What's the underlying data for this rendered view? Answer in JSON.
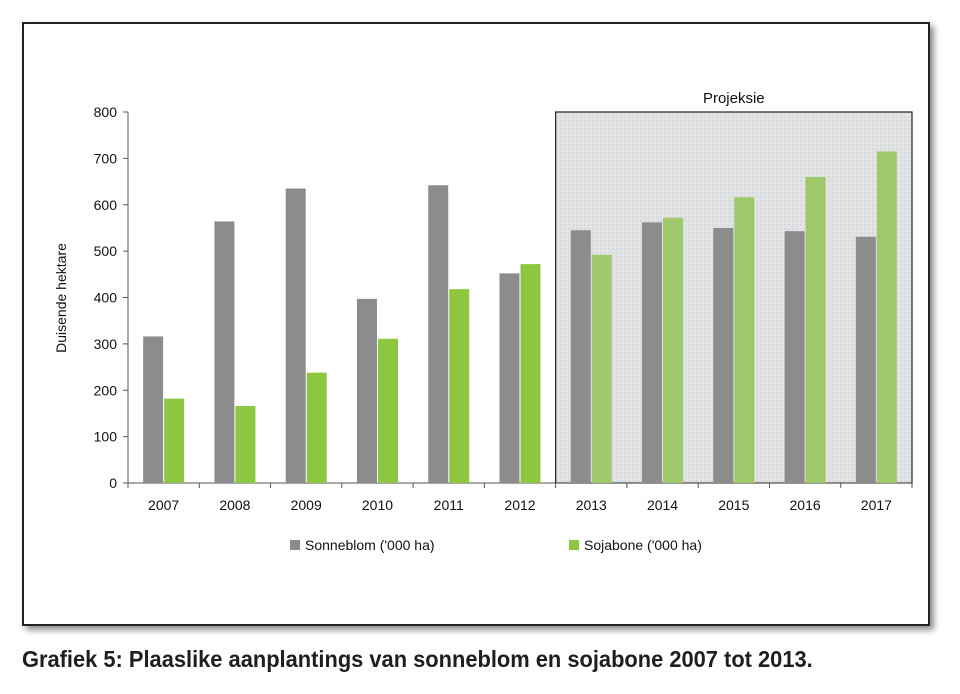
{
  "caption": "Grafiek 5: Plaaslike aanplantings van sonneblom en sojabone 2007 tot 2013.",
  "chart_data": {
    "type": "bar",
    "title": "",
    "xlabel": "",
    "ylabel": "Duisende hektare",
    "ylim": [
      0,
      800
    ],
    "yticks": [
      0,
      100,
      200,
      300,
      400,
      500,
      600,
      700,
      800
    ],
    "categories": [
      "2007",
      "2008",
      "2009",
      "2010",
      "2011",
      "2012",
      "2013",
      "2014",
      "2015",
      "2016",
      "2017"
    ],
    "series": [
      {
        "name": "Sonneblom ('000 ha)",
        "color": "#8c8c8c",
        "values": [
          316,
          564,
          635,
          397,
          642,
          452,
          545,
          562,
          550,
          543,
          531
        ]
      },
      {
        "name": "Sojabone ('000 ha)",
        "color": "#8dc63f",
        "projection_color": "#9fc86a",
        "values": [
          182,
          166,
          238,
          311,
          418,
          472,
          492,
          572,
          616,
          660,
          715
        ]
      }
    ],
    "projection": {
      "label": "Projeksie",
      "from_category": "2013",
      "shade_color": "#e2e4e6"
    },
    "grid": false,
    "legend": "bottom"
  }
}
